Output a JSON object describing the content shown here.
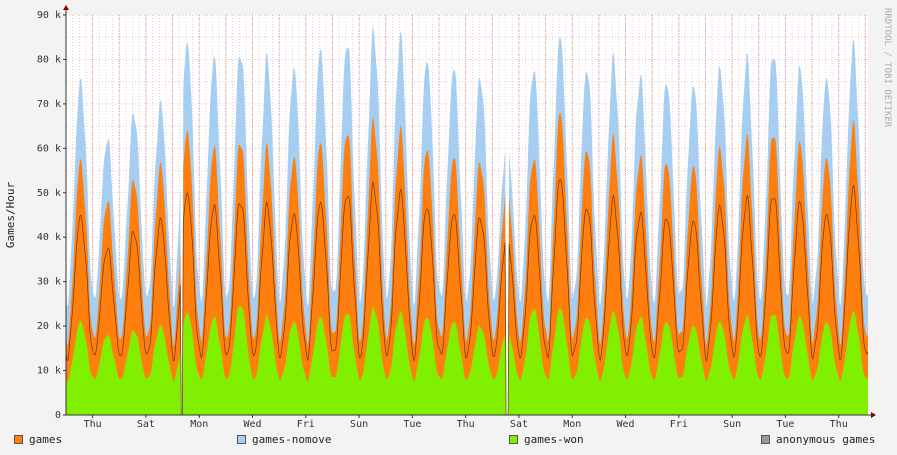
{
  "chart_data": {
    "type": "area",
    "ylabel": "Games/Hour",
    "ylim": [
      0,
      90000
    ],
    "y_ticks": [
      0,
      10000,
      20000,
      30000,
      40000,
      50000,
      60000,
      70000,
      80000,
      90000
    ],
    "y_tick_labels": [
      "0",
      "10 k",
      "20 k",
      "30 k",
      "40 k",
      "50 k",
      "60 k",
      "70 k",
      "80 k",
      "90 k"
    ],
    "x_days": 30.1,
    "x_ticks": [
      {
        "label": "Thu",
        "day": 1
      },
      {
        "label": "Sat",
        "day": 3
      },
      {
        "label": "Mon",
        "day": 5
      },
      {
        "label": "Wed",
        "day": 7
      },
      {
        "label": "Fri",
        "day": 9
      },
      {
        "label": "Sun",
        "day": 11
      },
      {
        "label": "Tue",
        "day": 13
      },
      {
        "label": "Thu",
        "day": 15
      },
      {
        "label": "Sat",
        "day": 17
      },
      {
        "label": "Mon",
        "day": 19
      },
      {
        "label": "Wed",
        "day": 21
      },
      {
        "label": "Fri",
        "day": 23
      },
      {
        "label": "Sun",
        "day": 25
      },
      {
        "label": "Tue",
        "day": 27
      },
      {
        "label": "Thu",
        "day": 29
      }
    ],
    "daily_peaks": {
      "games_nomove": [
        75000,
        62000,
        68000,
        70000,
        84000,
        80000,
        82000,
        80000,
        78000,
        82000,
        84000,
        86000,
        85000,
        80000,
        78000,
        76000,
        62000,
        78000,
        85000,
        78000,
        80000,
        76000,
        75000,
        74000,
        78000,
        80000,
        82000,
        78000,
        76000,
        83000
      ],
      "games": [
        57000,
        48000,
        53000,
        56000,
        64000,
        60000,
        62000,
        60000,
        58000,
        61000,
        64000,
        66000,
        64000,
        60000,
        58000,
        57000,
        52000,
        58000,
        68000,
        60000,
        62000,
        58000,
        57000,
        56000,
        60000,
        62000,
        64000,
        61000,
        58000,
        65000
      ],
      "games_won": [
        21000,
        18000,
        19000,
        20000,
        23000,
        22000,
        25000,
        22000,
        21000,
        22000,
        23000,
        24000,
        23000,
        22000,
        21000,
        20000,
        19000,
        24000,
        24000,
        22000,
        23000,
        22000,
        21000,
        20000,
        21000,
        22000,
        23000,
        22000,
        21000,
        23000
      ]
    },
    "daily_troughs": {
      "games_nomove": 26000,
      "games": 17000,
      "games_won": 8000
    },
    "series": [
      {
        "name": "games",
        "color": "#ff7f0e"
      },
      {
        "name": "games-nomove",
        "color": "#a6cdf2"
      },
      {
        "name": "games-won",
        "color": "#80f000"
      },
      {
        "name": "anonymous games",
        "color": "#999999"
      }
    ],
    "gaps_day": [
      4.35,
      16.55
    ],
    "grid": true,
    "legend": "bottom",
    "watermark": "RRDTOOL / TOBI OETIKER"
  }
}
